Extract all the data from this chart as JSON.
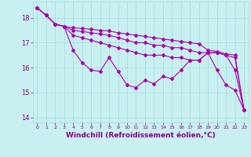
{
  "background_color": "#c8f0f0",
  "grid_color": "#aadddd",
  "line_color": "#aa00aa",
  "marker": "D",
  "markersize": 2.0,
  "linewidth": 0.8,
  "xlabel": "Windchill (Refroidissement éolien,°C)",
  "xlabel_fontsize": 6.5,
  "tick_color": "#880088",
  "ylim": [
    13.8,
    18.65
  ],
  "xlim": [
    -0.5,
    23.5
  ],
  "yticks": [
    14,
    15,
    16,
    17,
    18
  ],
  "xticks": [
    0,
    1,
    2,
    3,
    4,
    5,
    6,
    7,
    8,
    9,
    10,
    11,
    12,
    13,
    14,
    15,
    16,
    17,
    18,
    19,
    20,
    21,
    22,
    23
  ],
  "series": [
    [
      18.4,
      18.1,
      17.75,
      17.65,
      16.7,
      16.2,
      15.9,
      15.85,
      16.4,
      15.85,
      15.3,
      15.2,
      15.5,
      15.35,
      15.65,
      15.55,
      15.9,
      16.3,
      16.3,
      16.6,
      15.9,
      15.3,
      15.1,
      14.3
    ],
    [
      18.4,
      18.1,
      17.75,
      17.65,
      17.3,
      17.2,
      17.1,
      17.0,
      16.9,
      16.8,
      16.7,
      16.6,
      16.5,
      16.5,
      16.5,
      16.4,
      16.4,
      16.3,
      16.3,
      16.6,
      16.6,
      16.5,
      15.9,
      14.3
    ],
    [
      18.4,
      18.1,
      17.75,
      17.65,
      17.5,
      17.45,
      17.4,
      17.35,
      17.3,
      17.2,
      17.1,
      17.0,
      17.0,
      16.9,
      16.9,
      16.8,
      16.8,
      16.7,
      16.6,
      16.6,
      16.6,
      16.5,
      16.4,
      14.3
    ],
    [
      18.4,
      18.1,
      17.75,
      17.65,
      17.6,
      17.57,
      17.54,
      17.5,
      17.47,
      17.4,
      17.35,
      17.3,
      17.25,
      17.2,
      17.15,
      17.1,
      17.05,
      17.0,
      16.95,
      16.7,
      16.65,
      16.55,
      16.5,
      14.3
    ]
  ]
}
